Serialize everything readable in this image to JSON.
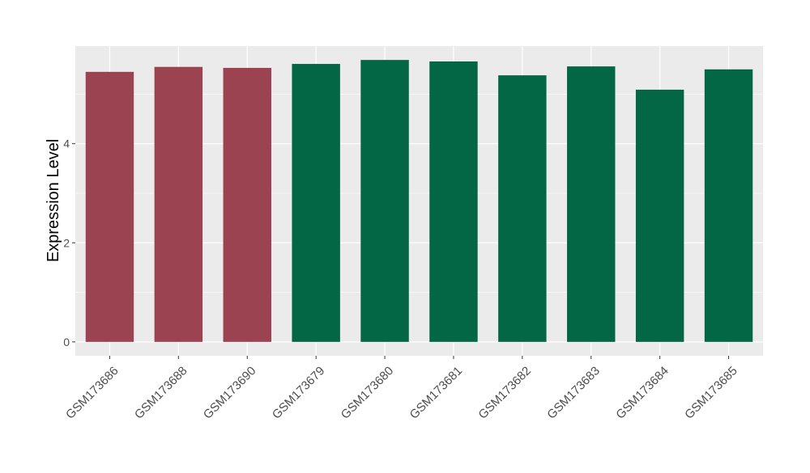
{
  "chart_data": {
    "type": "bar",
    "title": "",
    "xlabel": "",
    "ylabel": "Expression Level",
    "categories": [
      "GSM173686",
      "GSM173688",
      "GSM173690",
      "GSM173679",
      "GSM173680",
      "GSM173681",
      "GSM173682",
      "GSM173683",
      "GSM173684",
      "GSM173685"
    ],
    "values": [
      5.45,
      5.55,
      5.53,
      5.61,
      5.69,
      5.66,
      5.38,
      5.56,
      5.09,
      5.5
    ],
    "bar_colors": [
      "#9b4350",
      "#9b4350",
      "#9b4350",
      "#036645",
      "#036645",
      "#036645",
      "#036645",
      "#036645",
      "#036645",
      "#036645"
    ],
    "ylim": [
      -0.28,
      5.97
    ],
    "yticks": [
      0,
      2,
      4
    ],
    "ytick_labels": [
      "0",
      "2",
      "4"
    ],
    "grid": true,
    "legend": "none",
    "panel_background": "#ebebeb"
  }
}
